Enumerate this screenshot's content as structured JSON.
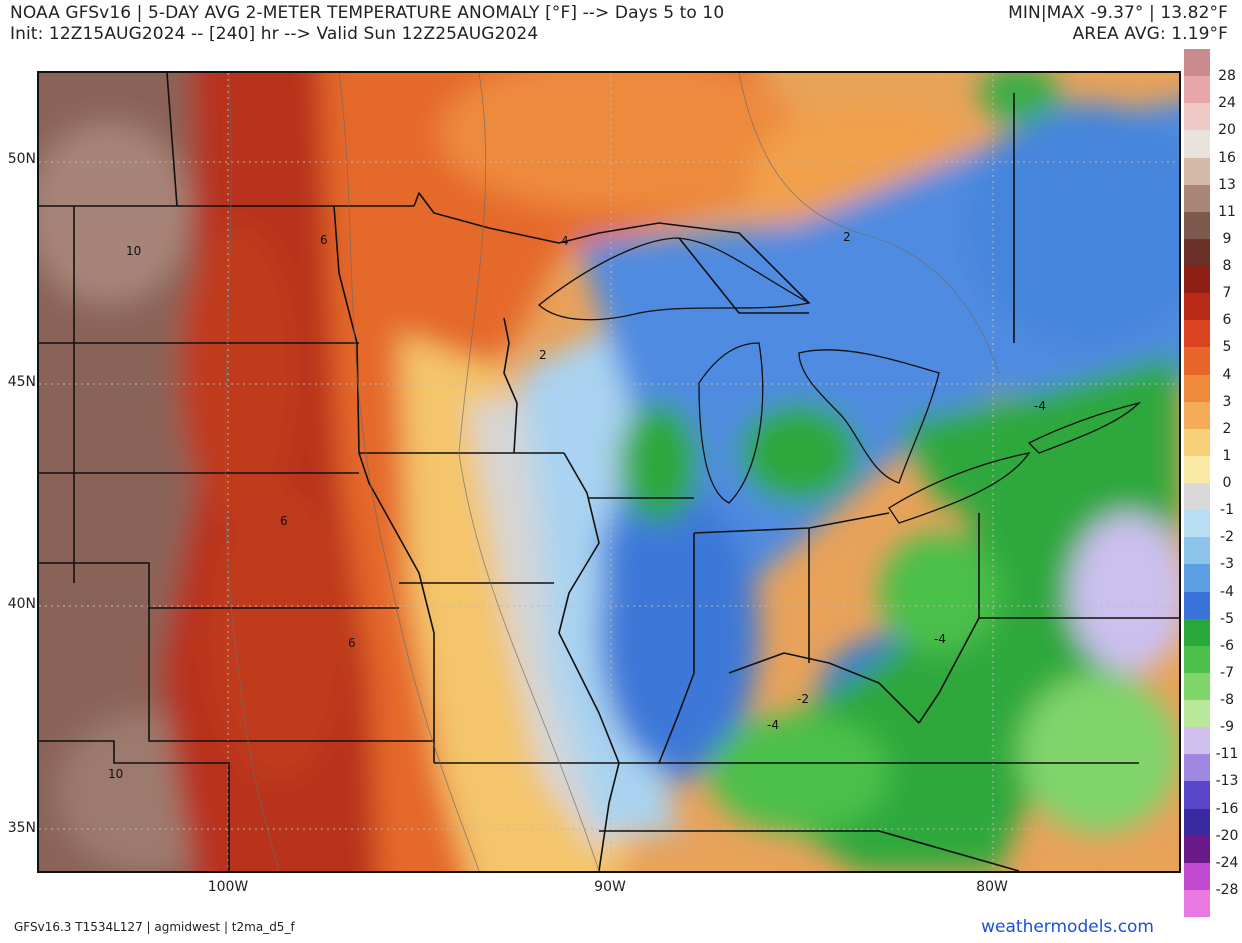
{
  "header": {
    "line1": "NOAA GFSv16 |  5-DAY AVG 2-METER TEMPERATURE ANOMALY [°F] --> Days 5 to 10",
    "line2": "Init: 12Z15AUG2024 -- [240] hr --> Valid Sun 12Z25AUG2024",
    "minmax": "MIN|MAX -9.37° | 13.82°F",
    "area_avg": "AREA AVG: 1.19°F"
  },
  "lat_labels": [
    "50N",
    "45N",
    "40N",
    "35N"
  ],
  "lon_labels": [
    "100W",
    "90W",
    "80W"
  ],
  "contour_labels": [
    "10",
    "6",
    "4",
    "2",
    "2",
    "6",
    "6",
    "10",
    "-2",
    "-4",
    "-4",
    "-4"
  ],
  "colorbar": {
    "labels": [
      "28",
      "24",
      "20",
      "16",
      "13",
      "11",
      "9",
      "8",
      "7",
      "6",
      "5",
      "4",
      "3",
      "2",
      "1",
      "0",
      "-1",
      "-2",
      "-3",
      "-4",
      "-5",
      "-6",
      "-7",
      "-8",
      "-9",
      "-11",
      "-13",
      "-16",
      "-20",
      "-24",
      "-28"
    ],
    "colors": [
      "#c98b8e",
      "#e7a7aa",
      "#efc9c5",
      "#e8e2dc",
      "#d4b8a8",
      "#a88576",
      "#7c5a4e",
      "#6b3028",
      "#8e1f14",
      "#b82a17",
      "#d9431f",
      "#e8662c",
      "#ef8a3c",
      "#f4ac56",
      "#f8d07a",
      "#fbeaa6",
      "#d9d9d9",
      "#b9def4",
      "#8cc4ec",
      "#5c9fe2",
      "#3a72da",
      "#29a83a",
      "#4cc04a",
      "#7fd46a",
      "#b9e89a",
      "#cfc0ee",
      "#9f86e0",
      "#5a46c8",
      "#3a2aa0",
      "#6a1a88",
      "#c24ad0",
      "#e87ae2"
    ]
  },
  "footer": {
    "left": "GFSv16.3 T1534L127 | agmidwest | t2ma_d5_f",
    "right": "weathermodels.com"
  }
}
